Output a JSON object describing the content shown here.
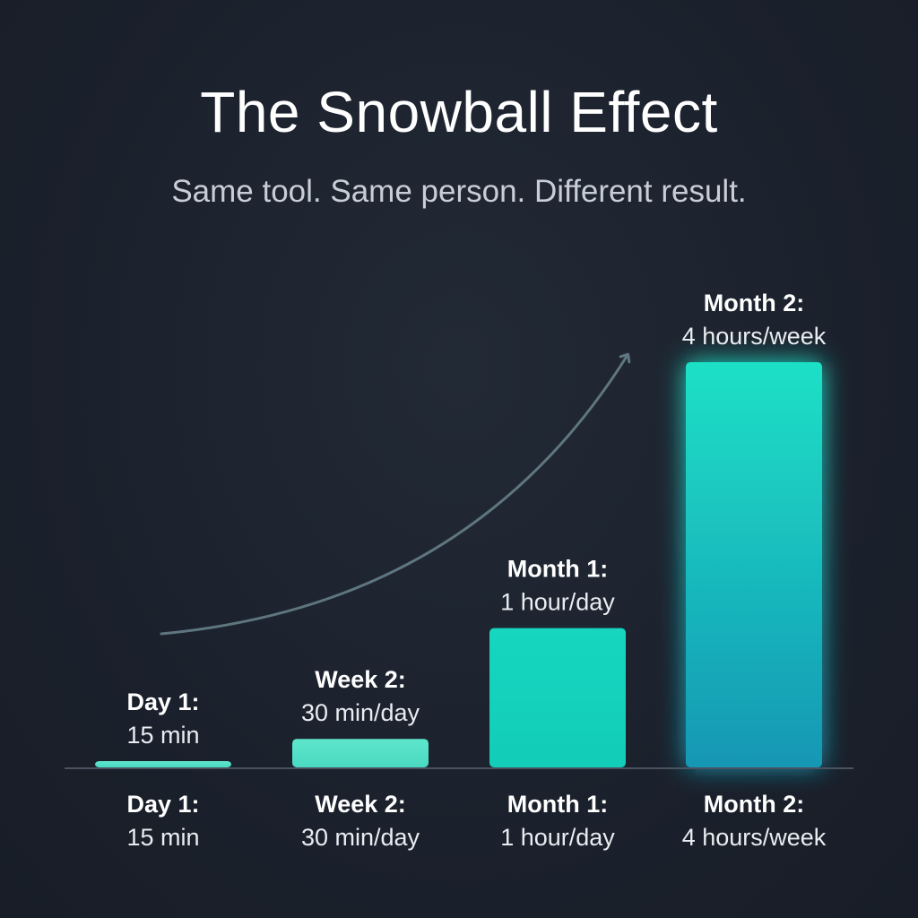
{
  "title": "The Snowball Effect",
  "subtitle": "Same tool. Same person. Different result.",
  "colors": {
    "background": "#1b212c",
    "bar_teal": "#19d3bd",
    "bar_light": "#4fe0c8",
    "arrow": "#5f7680",
    "axis": "#4a5260"
  },
  "chart_data": {
    "type": "bar",
    "categories": [
      "Day 1:",
      "Week 2:",
      "Month 1:",
      "Month 2:"
    ],
    "value_labels": [
      "15 min",
      "30 min/day",
      "1 hour/day",
      "4 hours/week"
    ],
    "values": [
      1,
      4.5,
      22,
      64
    ],
    "ylim": [
      0,
      64
    ],
    "grid": false,
    "annotations": [
      "upward curved trend arrow"
    ]
  }
}
